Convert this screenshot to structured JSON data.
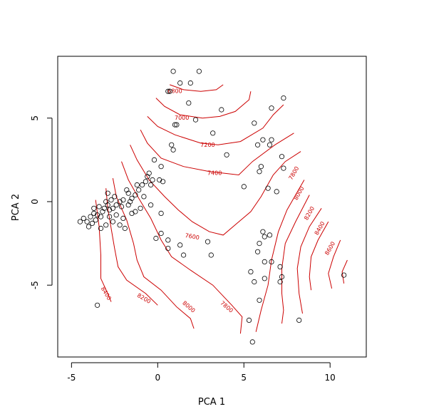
{
  "chart_data": {
    "type": "scatter",
    "title": "",
    "xlabel": "PCA 1",
    "ylabel": "PCA 2",
    "xlim": [
      -5.8,
      12.1
    ],
    "ylim": [
      -9.3,
      8.7
    ],
    "xticks": [
      -5,
      0,
      5,
      10
    ],
    "yticks": [
      -5,
      0,
      5
    ],
    "grid": false,
    "point_color": "#000000",
    "contour_color": "#cc0000",
    "points": [
      [
        0.9,
        7.8
      ],
      [
        2.4,
        7.8
      ],
      [
        1.3,
        7.1
      ],
      [
        1.9,
        7.1
      ],
      [
        0.6,
        6.6
      ],
      [
        0.7,
        6.6
      ],
      [
        1.8,
        5.9
      ],
      [
        3.7,
        5.5
      ],
      [
        2.2,
        4.9
      ],
      [
        7.3,
        6.2
      ],
      [
        6.6,
        5.6
      ],
      [
        1.0,
        4.6
      ],
      [
        1.1,
        4.6
      ],
      [
        3.2,
        4.1
      ],
      [
        4.0,
        2.8
      ],
      [
        5.6,
        4.7
      ],
      [
        5.8,
        3.4
      ],
      [
        6.5,
        3.4
      ],
      [
        6.1,
        3.7
      ],
      [
        6.6,
        3.7
      ],
      [
        0.8,
        3.4
      ],
      [
        0.9,
        3.1
      ],
      [
        -0.2,
        2.5
      ],
      [
        0.2,
        2.1
      ],
      [
        7.2,
        2.7
      ],
      [
        7.3,
        2.0
      ],
      [
        6.0,
        2.1
      ],
      [
        5.9,
        1.8
      ],
      [
        5.0,
        0.9
      ],
      [
        6.4,
        0.8
      ],
      [
        6.9,
        0.6
      ],
      [
        -0.3,
        1.3
      ],
      [
        0.1,
        1.3
      ],
      [
        0.3,
        1.2
      ],
      [
        -0.5,
        1.7
      ],
      [
        -0.6,
        1.5
      ],
      [
        -0.7,
        1.2
      ],
      [
        -0.9,
        1.0
      ],
      [
        -1.1,
        0.7
      ],
      [
        -1.3,
        0.4
      ],
      [
        -1.5,
        0.2
      ],
      [
        -1.7,
        0.5
      ],
      [
        -1.8,
        0.7
      ],
      [
        -2.0,
        0.1
      ],
      [
        -2.2,
        0.0
      ],
      [
        -2.4,
        -0.2
      ],
      [
        -2.5,
        0.3
      ],
      [
        -2.6,
        -0.4
      ],
      [
        -2.7,
        0.1
      ],
      [
        -2.8,
        -0.5
      ],
      [
        -2.9,
        -0.2
      ],
      [
        -3.0,
        0.0
      ],
      [
        -3.1,
        -0.4
      ],
      [
        -3.2,
        -0.6
      ],
      [
        -3.3,
        -0.9
      ],
      [
        -3.4,
        -0.3
      ],
      [
        -3.5,
        -0.8
      ],
      [
        -3.6,
        -1.1
      ],
      [
        -3.7,
        -0.7
      ],
      [
        -3.8,
        -1.3
      ],
      [
        -3.9,
        -0.9
      ],
      [
        -4.0,
        -1.5
      ],
      [
        -4.1,
        -1.2
      ],
      [
        -4.3,
        -1.0
      ],
      [
        -4.5,
        -1.2
      ],
      [
        -2.6,
        -1.2
      ],
      [
        -2.2,
        -1.4
      ],
      [
        -1.9,
        -1.6
      ],
      [
        -1.3,
        -0.6
      ],
      [
        -1.0,
        -0.4
      ],
      [
        -0.4,
        -0.2
      ],
      [
        0.2,
        -0.7
      ],
      [
        0.2,
        -1.9
      ],
      [
        -0.1,
        -2.2
      ],
      [
        0.6,
        -2.3
      ],
      [
        0.6,
        -2.8
      ],
      [
        1.3,
        -2.6
      ],
      [
        1.5,
        -3.2
      ],
      [
        2.9,
        -2.4
      ],
      [
        3.1,
        -3.2
      ],
      [
        6.1,
        -1.8
      ],
      [
        6.2,
        -2.1
      ],
      [
        6.5,
        -2.0
      ],
      [
        5.9,
        -2.5
      ],
      [
        5.8,
        -3.0
      ],
      [
        6.2,
        -3.6
      ],
      [
        6.6,
        -3.6
      ],
      [
        5.4,
        -4.2
      ],
      [
        5.6,
        -4.8
      ],
      [
        6.2,
        -4.6
      ],
      [
        7.1,
        -3.9
      ],
      [
        7.2,
        -4.5
      ],
      [
        7.1,
        -4.8
      ],
      [
        5.9,
        -5.9
      ],
      [
        10.8,
        -4.4
      ],
      [
        -3.5,
        -6.2
      ],
      [
        5.3,
        -7.1
      ],
      [
        5.5,
        -8.4
      ],
      [
        8.2,
        -7.1
      ],
      [
        -1.5,
        -0.7
      ],
      [
        -2.1,
        -0.3
      ],
      [
        -2.8,
        -0.9
      ],
      [
        -3.3,
        -1.6
      ],
      [
        -2.4,
        -0.8
      ],
      [
        -1.6,
        0.0
      ],
      [
        -0.8,
        0.3
      ],
      [
        -0.4,
        1.0
      ],
      [
        -1.2,
        1.0
      ],
      [
        -2.9,
        0.5
      ],
      [
        -3.7,
        -0.4
      ],
      [
        -2.0,
        -1.0
      ],
      [
        -3.0,
        -1.4
      ],
      [
        -1.7,
        -0.2
      ]
    ],
    "contours": [
      {
        "label": "6800",
        "points": [
          [
            0.7,
            7.0
          ],
          [
            1.5,
            6.7
          ],
          [
            2.5,
            6.6
          ],
          [
            3.4,
            6.7
          ],
          [
            3.8,
            7.0
          ]
        ]
      },
      {
        "label": "7000",
        "points": [
          [
            -0.1,
            6.2
          ],
          [
            0.4,
            5.7
          ],
          [
            1.3,
            5.2
          ],
          [
            2.6,
            5.0
          ],
          [
            3.6,
            5.1
          ],
          [
            4.5,
            5.4
          ],
          [
            5.3,
            6.1
          ],
          [
            5.4,
            6.6
          ]
        ]
      },
      {
        "label": "7200",
        "points": [
          [
            -0.6,
            5.1
          ],
          [
            0.0,
            4.5
          ],
          [
            1.0,
            4.0
          ],
          [
            2.5,
            3.5
          ],
          [
            3.5,
            3.4
          ],
          [
            4.8,
            3.6
          ],
          [
            6.1,
            4.4
          ],
          [
            6.7,
            5.2
          ],
          [
            7.3,
            5.8
          ]
        ]
      },
      {
        "label": "7400",
        "points": [
          [
            -1.0,
            4.3
          ],
          [
            -0.6,
            3.5
          ],
          [
            0.2,
            2.6
          ],
          [
            1.5,
            2.1
          ],
          [
            3.0,
            1.8
          ],
          [
            4.7,
            1.6
          ],
          [
            5.5,
            2.4
          ],
          [
            6.8,
            3.4
          ],
          [
            7.9,
            4.1
          ]
        ]
      },
      {
        "label": "7600",
        "points": [
          [
            -1.6,
            3.4
          ],
          [
            -1.2,
            2.5
          ],
          [
            -0.5,
            1.3
          ],
          [
            0.4,
            0.3
          ],
          [
            1.2,
            -0.5
          ],
          [
            2.0,
            -1.2
          ],
          [
            3.0,
            -1.8
          ],
          [
            3.8,
            -2.0
          ],
          [
            4.6,
            -1.3
          ],
          [
            5.4,
            -0.6
          ],
          [
            6.0,
            0.3
          ],
          [
            6.7,
            1.6
          ],
          [
            7.4,
            2.4
          ],
          [
            8.3,
            3.0
          ]
        ]
      },
      {
        "label": "7800",
        "points": [
          [
            -2.1,
            2.4
          ],
          [
            -1.7,
            1.3
          ],
          [
            -1.1,
            0.2
          ],
          [
            -0.4,
            -1.0
          ],
          [
            0.2,
            -2.3
          ],
          [
            0.8,
            -3.3
          ],
          [
            1.9,
            -4.1
          ],
          [
            3.2,
            -5.0
          ],
          [
            4.3,
            -6.2
          ],
          [
            4.9,
            -6.9
          ],
          [
            4.8,
            -7.9
          ]
        ]
      },
      {
        "label": "7800",
        "points": [
          [
            8.5,
            1.3
          ],
          [
            7.5,
            -0.5
          ],
          [
            7.0,
            -1.8
          ],
          [
            6.6,
            -3.5
          ],
          [
            6.4,
            -5.0
          ],
          [
            6.0,
            -6.5
          ],
          [
            5.7,
            -7.8
          ]
        ]
      },
      {
        "label": "8000",
        "points": [
          [
            -2.6,
            1.4
          ],
          [
            -2.4,
            0.3
          ],
          [
            -1.8,
            -1.1
          ],
          [
            -1.4,
            -2.5
          ],
          [
            -1.2,
            -3.5
          ],
          [
            -0.8,
            -4.5
          ],
          [
            0.2,
            -5.3
          ],
          [
            1.1,
            -6.3
          ],
          [
            1.9,
            -7.0
          ],
          [
            2.1,
            -7.6
          ]
        ]
      },
      {
        "label": "8000",
        "points": [
          [
            8.8,
            0.4
          ],
          [
            8.0,
            -1.2
          ],
          [
            7.4,
            -2.5
          ],
          [
            7.2,
            -4.0
          ],
          [
            7.2,
            -5.5
          ],
          [
            7.3,
            -6.5
          ],
          [
            7.2,
            -7.3
          ]
        ]
      },
      {
        "label": "8200",
        "points": [
          [
            -3.0,
            0.8
          ],
          [
            -2.9,
            -0.4
          ],
          [
            -2.7,
            -1.6
          ],
          [
            -2.5,
            -2.8
          ],
          [
            -2.3,
            -3.9
          ],
          [
            -1.8,
            -4.7
          ],
          [
            -0.7,
            -5.5
          ],
          [
            0.0,
            -6.2
          ]
        ]
      },
      {
        "label": "8200",
        "points": [
          [
            9.5,
            -0.4
          ],
          [
            8.8,
            -1.5
          ],
          [
            8.3,
            -2.7
          ],
          [
            8.1,
            -4.0
          ],
          [
            8.2,
            -5.5
          ],
          [
            8.4,
            -6.7
          ]
        ]
      },
      {
        "label": "8400",
        "points": [
          [
            -3.6,
            0.1
          ],
          [
            -3.4,
            -1.5
          ],
          [
            -3.3,
            -3.2
          ],
          [
            -3.3,
            -4.6
          ],
          [
            -2.9,
            -5.5
          ],
          [
            -2.7,
            -6.0
          ]
        ]
      },
      {
        "label": "8400",
        "points": [
          [
            9.9,
            -1.2
          ],
          [
            9.3,
            -2.3
          ],
          [
            8.9,
            -3.3
          ],
          [
            8.8,
            -4.5
          ],
          [
            8.9,
            -5.3
          ]
        ]
      },
      {
        "label": "8600",
        "points": [
          [
            10.6,
            -2.3
          ],
          [
            10.2,
            -3.3
          ],
          [
            9.9,
            -4.3
          ],
          [
            10.1,
            -5.2
          ]
        ]
      },
      {
        "label": "",
        "points": [
          [
            11.0,
            -3.5
          ],
          [
            10.7,
            -4.2
          ],
          [
            10.8,
            -4.9
          ]
        ]
      }
    ],
    "contour_labels": [
      {
        "text": "6800",
        "x": 1.0,
        "y": 6.6,
        "angle": 0
      },
      {
        "text": "7000",
        "x": 1.4,
        "y": 5.0,
        "angle": 0
      },
      {
        "text": "7200",
        "x": 2.9,
        "y": 3.4,
        "angle": 0
      },
      {
        "text": "7400",
        "x": 3.3,
        "y": 1.7,
        "angle": 0
      },
      {
        "text": "7600",
        "x": 2.0,
        "y": -2.1,
        "angle": 10
      },
      {
        "text": "7800",
        "x": 7.9,
        "y": 1.7,
        "angle": -60
      },
      {
        "text": "8000",
        "x": 8.2,
        "y": 0.5,
        "angle": -60
      },
      {
        "text": "8200",
        "x": 8.8,
        "y": -0.7,
        "angle": -60
      },
      {
        "text": "8400",
        "x": 9.4,
        "y": -1.6,
        "angle": -60
      },
      {
        "text": "8600",
        "x": 10.0,
        "y": -2.8,
        "angle": -60
      },
      {
        "text": "8400",
        "x": -3.0,
        "y": -5.5,
        "angle": 60
      },
      {
        "text": "8200",
        "x": -0.8,
        "y": -5.8,
        "angle": 30
      },
      {
        "text": "8000",
        "x": 1.8,
        "y": -6.3,
        "angle": 40
      },
      {
        "text": "7800",
        "x": 4.0,
        "y": -6.3,
        "angle": 40
      }
    ]
  }
}
